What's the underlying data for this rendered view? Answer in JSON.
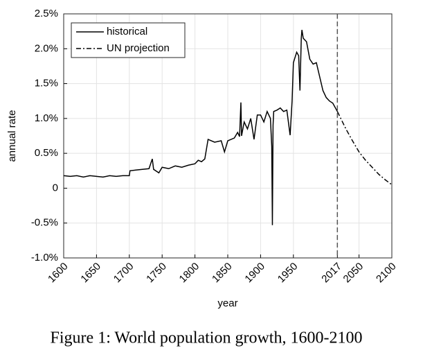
{
  "chart_data": {
    "type": "line",
    "xlabel": "year",
    "ylabel": "annual rate",
    "caption": "Figure 1: World population growth, 1600-2100",
    "xlim": [
      1600,
      2100
    ],
    "ylim": [
      -1,
      2.5
    ],
    "xticks": [
      1600,
      1650,
      1700,
      1750,
      1800,
      1850,
      1900,
      1950,
      2017,
      2050,
      2100
    ],
    "yticks": [
      {
        "value": -1,
        "label": "-1.0%"
      },
      {
        "value": -0.5,
        "label": "-0.5%"
      },
      0,
      {
        "value": 0.5,
        "label": "0.5%"
      },
      {
        "value": 1,
        "label": "1.0%"
      },
      {
        "value": 1.5,
        "label": "1.5%"
      },
      {
        "value": 2,
        "label": "2.0%"
      },
      {
        "value": 2.5,
        "label": "2.5%"
      }
    ],
    "grid": true,
    "legend": "upper left",
    "vline": 2017,
    "series": [
      {
        "name": "historical",
        "color": "#000000",
        "style": "solid",
        "x": [
          1600,
          1610,
          1620,
          1630,
          1640,
          1650,
          1660,
          1670,
          1680,
          1690,
          1700,
          1701,
          1710,
          1720,
          1730,
          1735,
          1737,
          1745,
          1750,
          1760,
          1770,
          1780,
          1790,
          1800,
          1805,
          1810,
          1815,
          1820,
          1830,
          1840,
          1845,
          1850,
          1860,
          1865,
          1868,
          1870,
          1871,
          1875,
          1880,
          1885,
          1890,
          1895,
          1900,
          1905,
          1910,
          1915,
          1917,
          1918,
          1919,
          1920,
          1925,
          1930,
          1935,
          1940,
          1945,
          1948,
          1950,
          1955,
          1958,
          1960,
          1962,
          1963,
          1965,
          1970,
          1975,
          1980,
          1985,
          1990,
          1995,
          2000,
          2005,
          2010,
          2017
        ],
        "values": [
          0.18,
          0.17,
          0.18,
          0.16,
          0.18,
          0.17,
          0.16,
          0.18,
          0.17,
          0.18,
          0.18,
          0.25,
          0.26,
          0.27,
          0.28,
          0.42,
          0.27,
          0.22,
          0.3,
          0.28,
          0.32,
          0.3,
          0.33,
          0.35,
          0.4,
          0.38,
          0.42,
          0.7,
          0.66,
          0.68,
          0.52,
          0.68,
          0.72,
          0.8,
          0.74,
          1.23,
          0.75,
          0.95,
          0.85,
          1.0,
          0.7,
          1.05,
          1.05,
          0.95,
          1.1,
          1.0,
          0.6,
          -0.53,
          0.9,
          1.1,
          1.12,
          1.15,
          1.1,
          1.12,
          0.76,
          1.25,
          1.8,
          1.95,
          1.9,
          1.4,
          2.15,
          2.27,
          2.15,
          2.1,
          1.85,
          1.78,
          1.8,
          1.6,
          1.4,
          1.3,
          1.25,
          1.22,
          1.1
        ]
      },
      {
        "name": "UN projection",
        "color": "#000000",
        "style": "dashdot",
        "x": [
          2017,
          2030,
          2040,
          2050,
          2060,
          2070,
          2080,
          2090,
          2100
        ],
        "values": [
          1.1,
          0.85,
          0.68,
          0.52,
          0.4,
          0.3,
          0.2,
          0.12,
          0.05
        ]
      }
    ]
  }
}
